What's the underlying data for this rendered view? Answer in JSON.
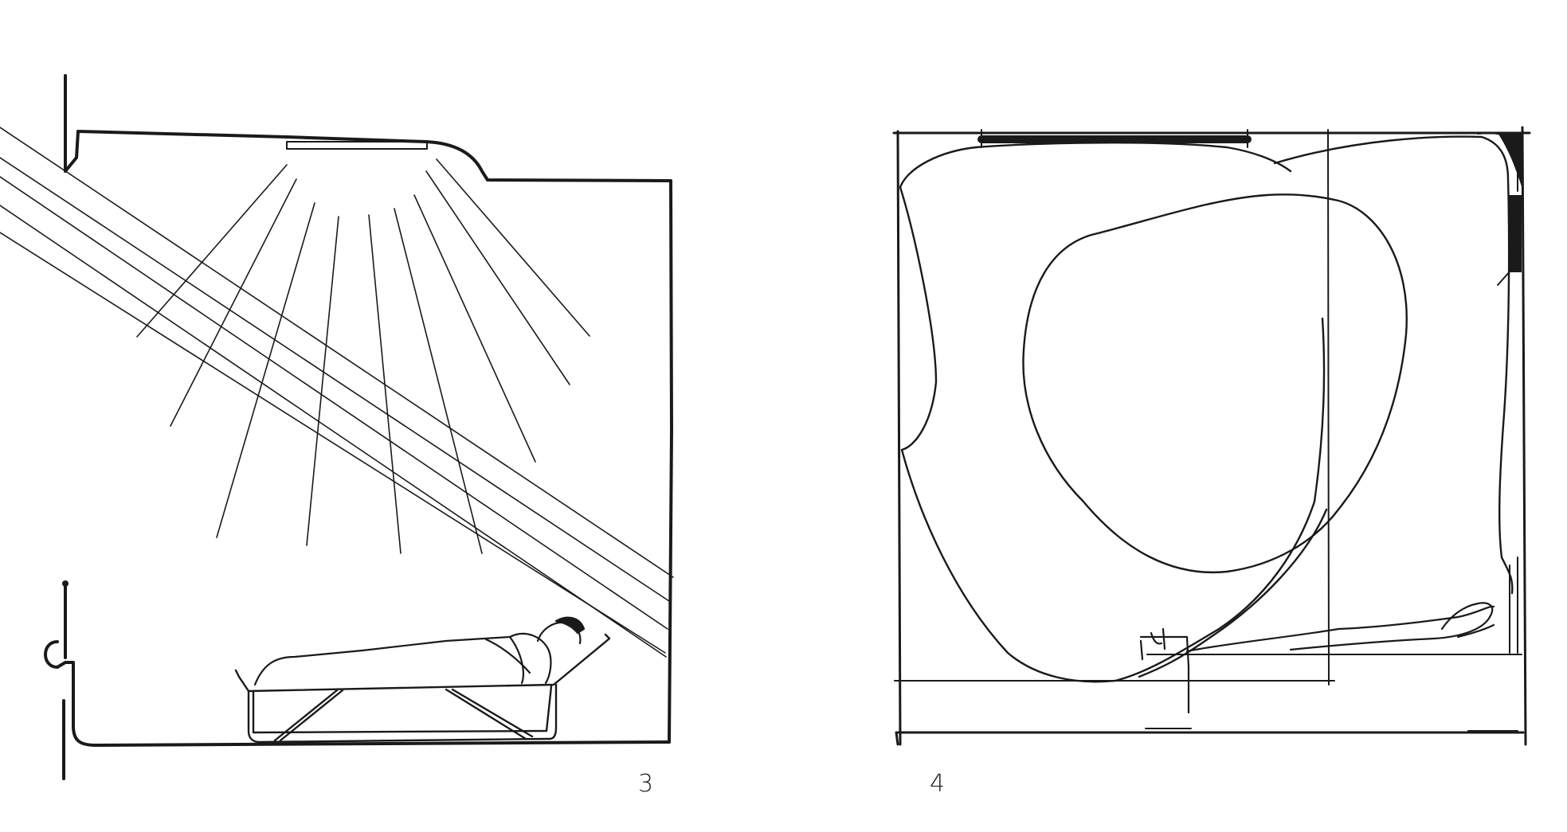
{
  "figures": [
    {
      "number": "3",
      "subject": "room-section-with-skylight-and-bed"
    },
    {
      "number": "4",
      "subject": "room-section-with-freeform-curves-and-reclining-figure"
    }
  ],
  "colors": {
    "ink": "#1a1a1a",
    "paper": "#ffffff"
  }
}
